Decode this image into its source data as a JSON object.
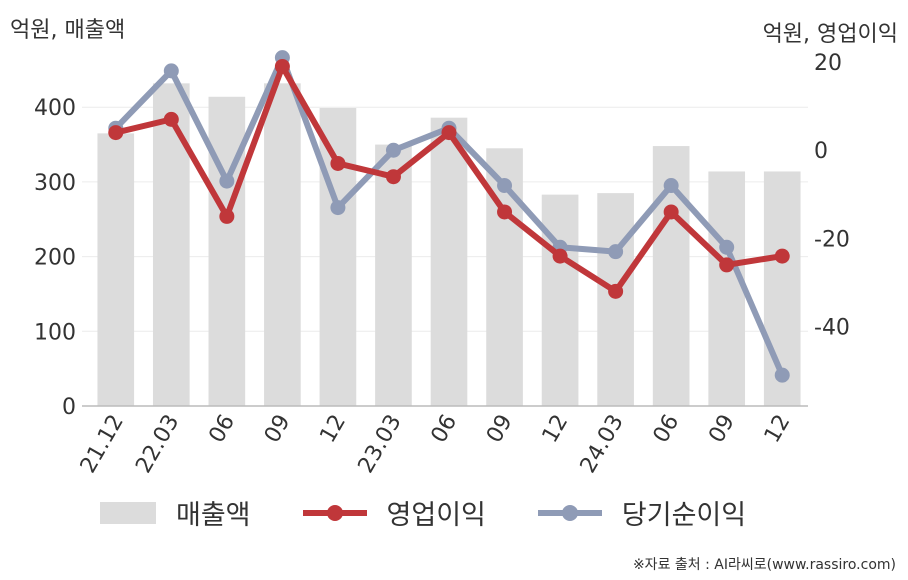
{
  "left_unit": "억원, 매출액",
  "right_unit": "억원, 영업이익",
  "source": "※자료 출처 : AI라씨로(www.rassiro.com)",
  "colors": {
    "sales": "#dcdcdc",
    "op": "#c0373a",
    "net": "#8f9bb6",
    "axis": "#bbbbbb",
    "grid": "#ececec"
  },
  "chart_data": {
    "type": "bar",
    "categories": [
      "21.12",
      "22.03",
      "06",
      "09",
      "12",
      "23.03",
      "06",
      "09",
      "12",
      "24.03",
      "06",
      "09",
      "12"
    ],
    "series": [
      {
        "name": "매출액",
        "type": "bar",
        "axis": "left",
        "values": [
          365,
          432,
          414,
          432,
          399,
          350,
          386,
          345,
          283,
          285,
          348,
          314,
          314
        ]
      },
      {
        "name": "영업이익",
        "type": "line",
        "axis": "right",
        "values": [
          4,
          7,
          -15,
          19,
          -3,
          -6,
          4,
          -14,
          -24,
          -32,
          -14,
          -26,
          -24
        ]
      },
      {
        "name": "당기순이익",
        "type": "line",
        "axis": "right",
        "values": [
          5,
          18,
          -7,
          21,
          -13,
          0,
          5,
          -8,
          -22,
          -23,
          -8,
          -22,
          -51
        ]
      }
    ],
    "y_left": {
      "ticks": [
        0,
        100,
        200,
        300,
        400
      ],
      "lim": [
        0,
        490
      ]
    },
    "y_right": {
      "ticks": [
        -40,
        -20,
        0,
        20
      ],
      "lim": [
        -58,
        25
      ]
    }
  }
}
